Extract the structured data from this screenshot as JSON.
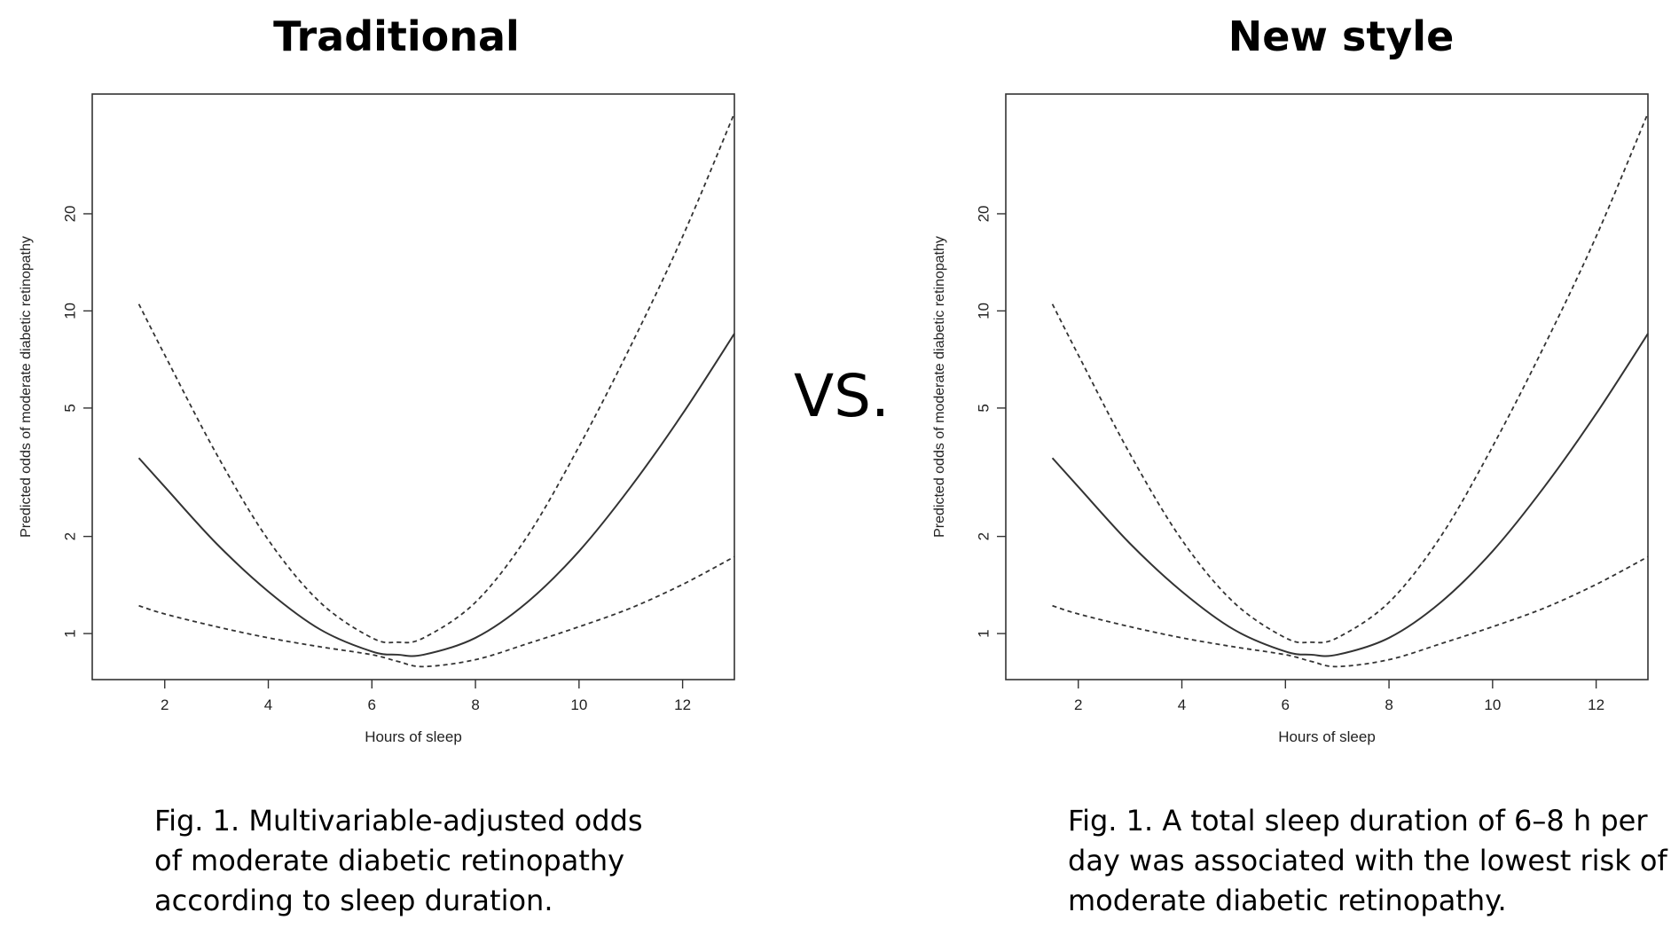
{
  "vs_label": "VS.",
  "chart_data": [
    {
      "type": "line",
      "title": "Traditional",
      "caption": "Fig. 1. Multivariable-adjusted odds\nof moderate diabetic retinopathy\naccording to sleep duration.",
      "xlabel": "Hours of sleep",
      "ylabel": "Predicted odds of moderate diabetic retinopathy",
      "xlim": [
        0.6,
        13.0
      ],
      "ylim": [
        0.72,
        47
      ],
      "yscale": "log",
      "xticks": [
        2,
        4,
        6,
        8,
        10,
        12
      ],
      "yticks": [
        1,
        2,
        5,
        10,
        20
      ],
      "x": [
        1.5,
        2,
        3,
        4,
        5,
        6,
        6.5,
        7,
        8,
        9,
        10,
        11,
        12,
        13
      ],
      "series": [
        {
          "style": "solid",
          "values": [
            3.5,
            2.85,
            1.9,
            1.35,
            1.03,
            0.88,
            0.86,
            0.86,
            0.97,
            1.25,
            1.8,
            2.85,
            4.8,
            8.5
          ]
        },
        {
          "style": "dashed",
          "values": [
            10.5,
            7.3,
            3.6,
            1.95,
            1.25,
            0.97,
            0.94,
            0.97,
            1.25,
            2.0,
            3.8,
            7.8,
            17,
            41
          ]
        },
        {
          "style": "dashed",
          "values": [
            1.22,
            1.15,
            1.05,
            0.97,
            0.91,
            0.86,
            0.82,
            0.79,
            0.83,
            0.93,
            1.05,
            1.2,
            1.42,
            1.73
          ]
        }
      ]
    },
    {
      "type": "line",
      "title": "New style",
      "caption": "Fig. 1. A total sleep duration of 6–8 h per\nday was associated with the lowest risk of\nmoderate diabetic retinopathy.",
      "xlabel": "Hours of sleep",
      "ylabel": "Predicted odds of moderate diabetic retinopathy",
      "xlim": [
        0.6,
        13.0
      ],
      "ylim": [
        0.72,
        47
      ],
      "yscale": "log",
      "xticks": [
        2,
        4,
        6,
        8,
        10,
        12
      ],
      "yticks": [
        1,
        2,
        5,
        10,
        20
      ],
      "x": [
        1.5,
        2,
        3,
        4,
        5,
        6,
        6.5,
        7,
        8,
        9,
        10,
        11,
        12,
        13
      ],
      "series": [
        {
          "style": "solid",
          "values": [
            3.5,
            2.85,
            1.9,
            1.35,
            1.03,
            0.88,
            0.86,
            0.86,
            0.97,
            1.25,
            1.8,
            2.85,
            4.8,
            8.5
          ]
        },
        {
          "style": "dashed",
          "values": [
            10.5,
            7.3,
            3.6,
            1.95,
            1.25,
            0.97,
            0.94,
            0.97,
            1.25,
            2.0,
            3.8,
            7.8,
            17,
            41
          ]
        },
        {
          "style": "dashed",
          "values": [
            1.22,
            1.15,
            1.05,
            0.97,
            0.91,
            0.86,
            0.82,
            0.79,
            0.83,
            0.93,
            1.05,
            1.2,
            1.42,
            1.73
          ]
        }
      ]
    }
  ]
}
